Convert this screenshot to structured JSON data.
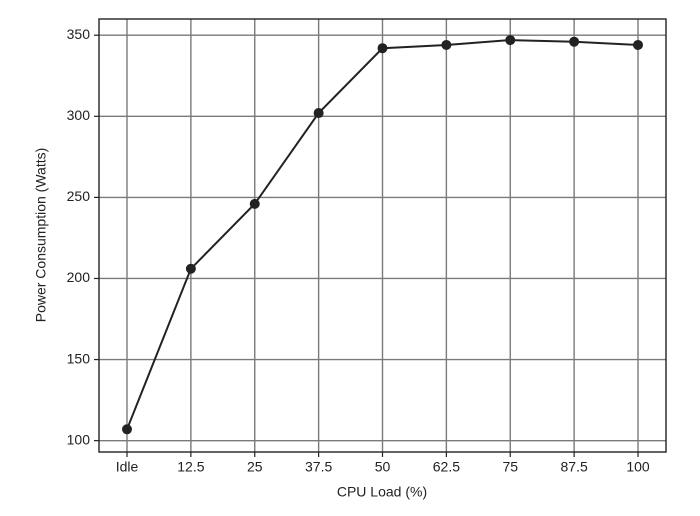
{
  "chart_data": {
    "type": "line",
    "x_label": "CPU Load (%)",
    "y_label": "Power Consumption (Watts)",
    "categories": [
      "Idle",
      "12.5",
      "25",
      "37.5",
      "50",
      "62.5",
      "75",
      "87.5",
      "100"
    ],
    "series": [
      {
        "name": "Power",
        "color": "#222222",
        "values": [
          107,
          206,
          246,
          302,
          342,
          344,
          347,
          346,
          344
        ]
      }
    ],
    "ylim": [
      93,
      360
    ],
    "yticks": [
      100,
      150,
      200,
      250,
      300,
      350
    ],
    "grid": true
  }
}
